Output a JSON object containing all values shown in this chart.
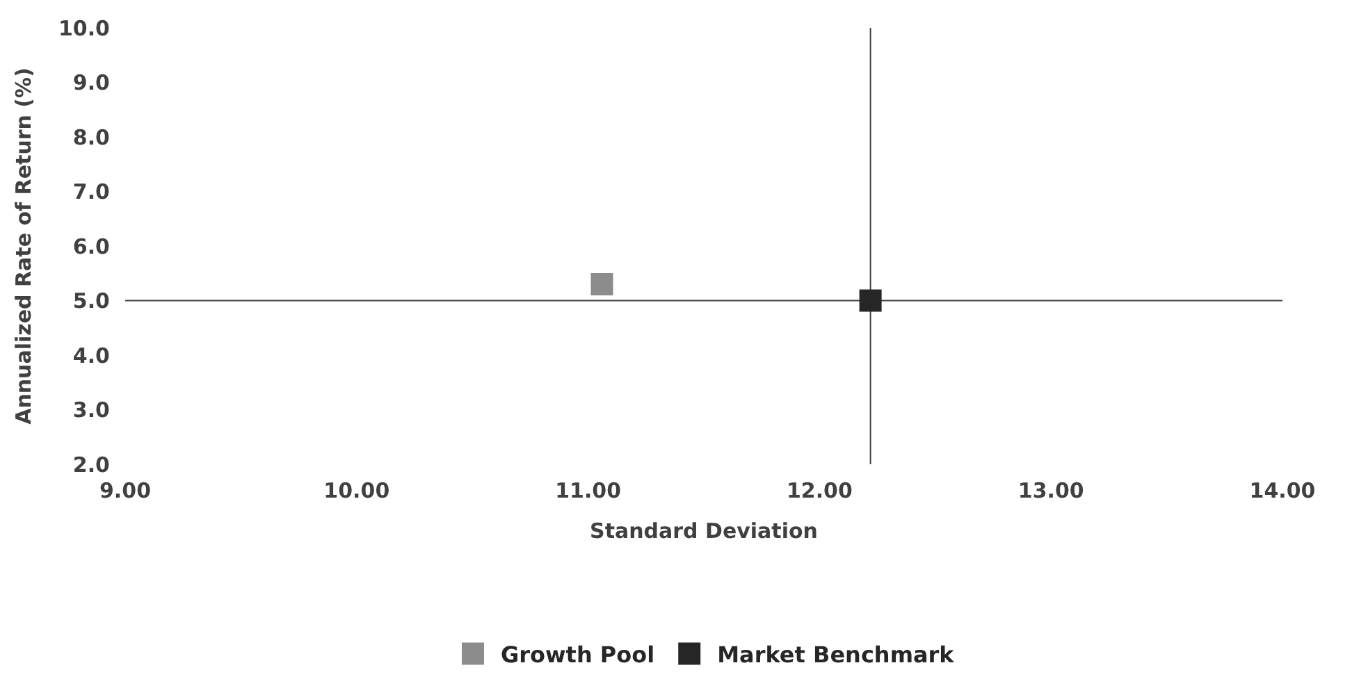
{
  "chart_data": {
    "type": "scatter",
    "xlabel": "Standard Deviation",
    "ylabel": "Annualized Rate of Return (%)",
    "series": [
      {
        "name": "Growth Pool",
        "color": "#8c8c8c",
        "x": [
          11.06
        ],
        "values": [
          5.3
        ]
      },
      {
        "name": "Market Benchmark",
        "color": "#262626",
        "x": [
          12.22
        ],
        "values": [
          5.0
        ]
      }
    ],
    "xlim": [
      9,
      14
    ],
    "xticks": [
      {
        "value": 9,
        "label": "9.00"
      },
      {
        "value": 10,
        "label": "10.00"
      },
      {
        "value": 11,
        "label": "11.00"
      },
      {
        "value": 12,
        "label": "12.00"
      },
      {
        "value": 13,
        "label": "13.00"
      },
      {
        "value": 14,
        "label": "14.00"
      }
    ],
    "ylim": [
      2,
      10
    ],
    "yticks": [
      {
        "value": 2,
        "label": "2.0"
      },
      {
        "value": 3,
        "label": "3.0"
      },
      {
        "value": 4,
        "label": "4.0"
      },
      {
        "value": 5,
        "label": "5.0"
      },
      {
        "value": 6,
        "label": "6.0"
      },
      {
        "value": 7,
        "label": "7.0"
      },
      {
        "value": 8,
        "label": "8.0"
      },
      {
        "value": 9,
        "label": "9.0"
      },
      {
        "value": 10,
        "label": "10.0"
      }
    ],
    "ref_lines": [
      {
        "axis": "y",
        "value": 5.0,
        "color": "#404040"
      },
      {
        "axis": "x",
        "value": 12.22,
        "color": "#404040"
      }
    ],
    "marker": "square",
    "grid": false,
    "legend": "bottom"
  }
}
